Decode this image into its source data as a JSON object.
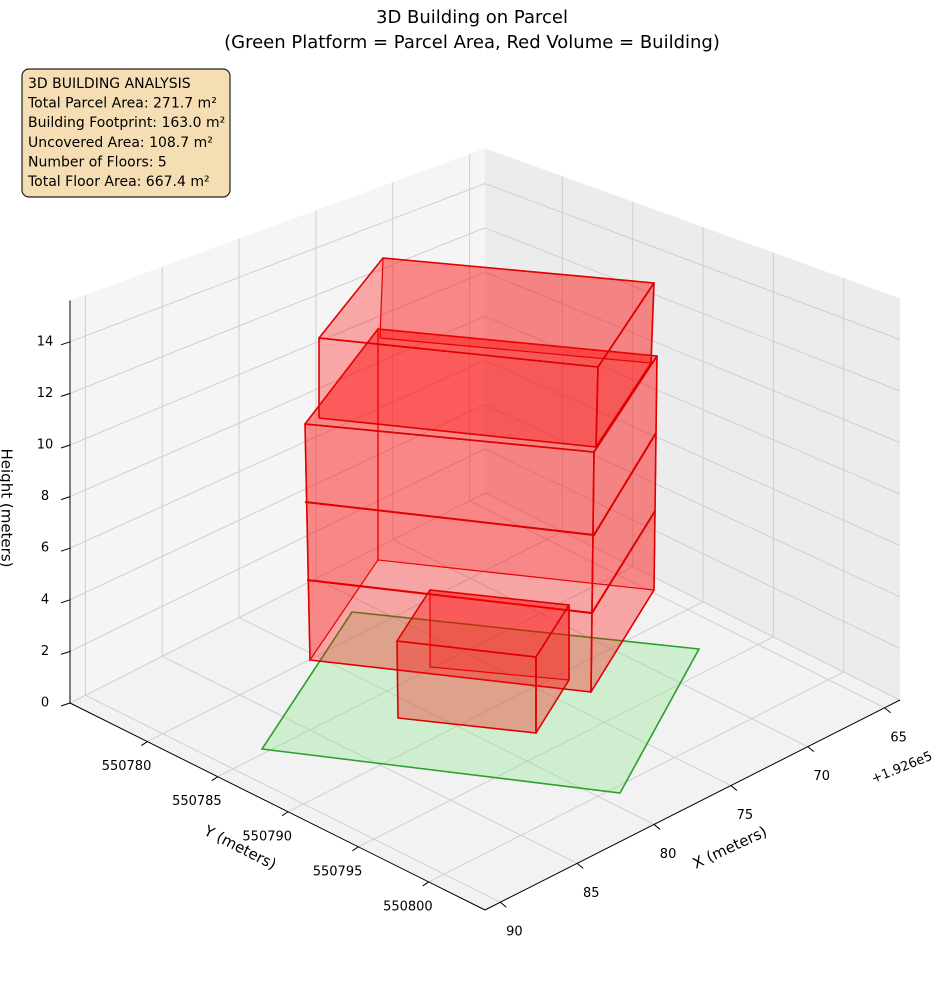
{
  "chart_data": {
    "type": "building3d",
    "title": "3D Building on Parcel",
    "subtitle": "(Green Platform = Parcel Area, Red Volume = Building)",
    "annotation": [
      "3D BUILDING ANALYSIS",
      "Total Parcel Area: 271.7 m²",
      "Building Footprint: 163.0 m²",
      "Uncovered Area: 108.7 m²",
      "Number of Floors: 5",
      "Total Floor Area: 667.4 m²"
    ],
    "xlabel": "X (meters)",
    "ylabel": "Y (meters)",
    "zlabel": "Height (meters)",
    "x_offset_label": "+1.926e5",
    "xlim": [
      192664,
      192691
    ],
    "xticks": [
      {
        "value": 192665,
        "label": "65"
      },
      {
        "value": 192670,
        "label": "70"
      },
      {
        "value": 192675,
        "label": "75"
      },
      {
        "value": 192680,
        "label": "80"
      },
      {
        "value": 192685,
        "label": "85"
      },
      {
        "value": 192690,
        "label": "90"
      }
    ],
    "ylim": [
      550774.5,
      550804
    ],
    "yticks": [
      550780,
      550785,
      550790,
      550795,
      550800
    ],
    "zlim": [
      0,
      15.6
    ],
    "zticks": [
      0,
      2,
      4,
      6,
      8,
      10,
      12,
      14
    ],
    "grid": true
  }
}
